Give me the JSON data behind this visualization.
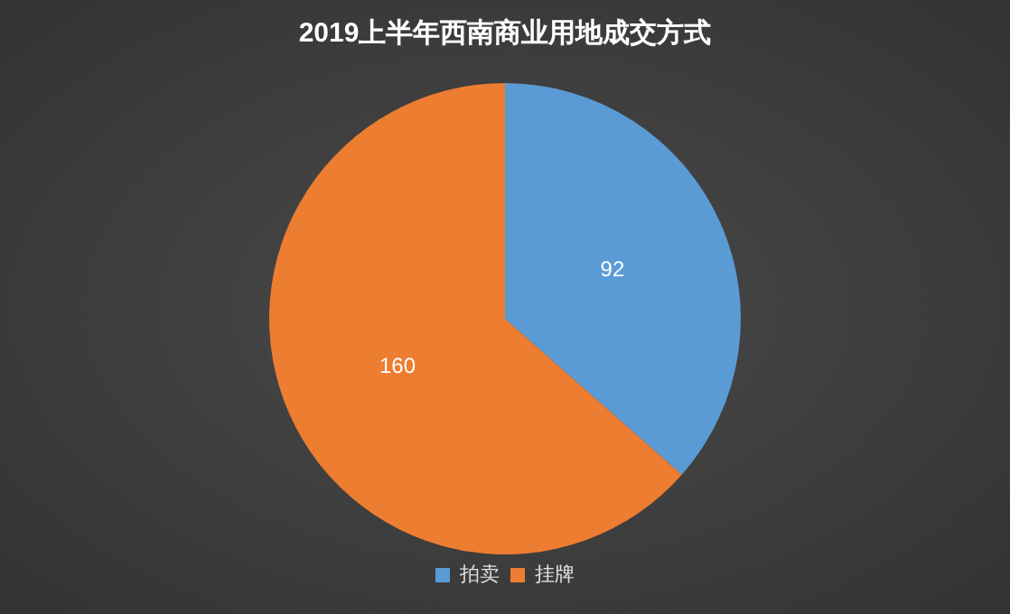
{
  "chart_data": {
    "type": "pie",
    "title": "2019上半年西南商业用地成交方式",
    "categories": [
      "拍卖",
      "挂牌"
    ],
    "values": [
      92,
      160
    ],
    "colors": [
      "#5b9bd5",
      "#ed7d31"
    ],
    "data_labels": true,
    "legend": "bottom"
  }
}
